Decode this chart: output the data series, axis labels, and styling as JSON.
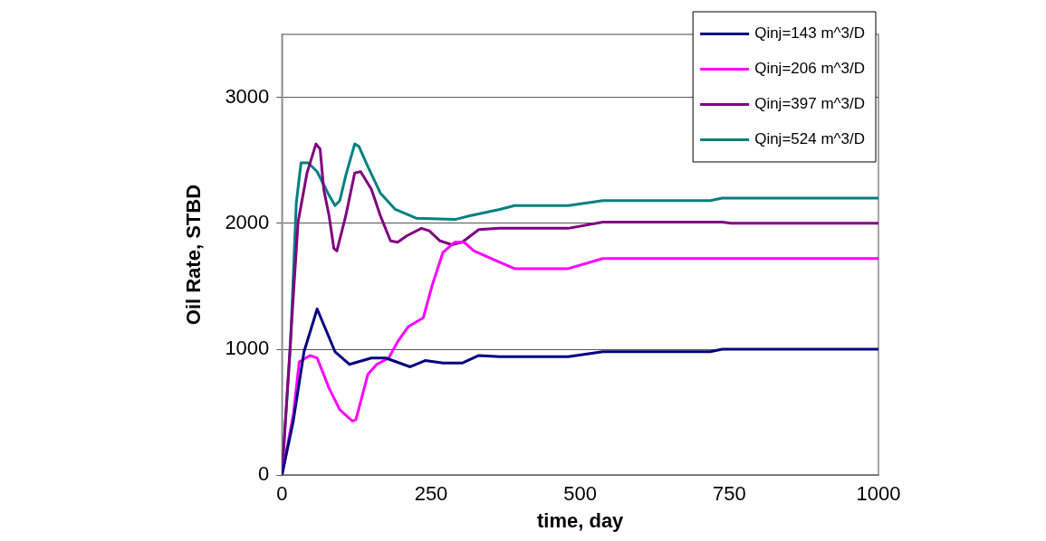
{
  "chart_data": {
    "type": "line",
    "xlabel": "time, day",
    "ylabel": "Oil Rate, STBD",
    "xlim": [
      0,
      1000
    ],
    "xticks": [
      0,
      250,
      500,
      750,
      1000
    ],
    "ylim": [
      0,
      3500
    ],
    "yticks": [
      0,
      1000,
      2000,
      3000
    ],
    "grid": "y",
    "legend": "top right",
    "marker": "none",
    "line_style": "solid",
    "series": [
      {
        "name": "Qinj=143 m^3/D",
        "color": "#000080",
        "x": [
          0,
          19,
          37,
          59,
          89,
          113,
          150,
          174,
          215,
          240,
          270,
          302,
          330,
          365,
          480,
          538,
          718,
          738,
          1000
        ],
        "values": [
          0,
          430,
          980,
          1320,
          980,
          880,
          930,
          930,
          860,
          910,
          890,
          890,
          950,
          940,
          940,
          980,
          980,
          1000,
          1000
        ]
      },
      {
        "name": "Qinj=206 m^3/D",
        "color": "#ff00ff",
        "x": [
          0,
          19,
          29,
          47,
          59,
          79,
          97,
          118,
          124,
          144,
          159,
          179,
          194,
          212,
          237,
          252,
          270,
          290,
          305,
          322,
          365,
          390,
          480,
          538,
          1000
        ],
        "values": [
          0,
          480,
          900,
          950,
          930,
          690,
          520,
          430,
          440,
          800,
          880,
          930,
          1060,
          1180,
          1250,
          1510,
          1770,
          1850,
          1850,
          1780,
          1690,
          1640,
          1640,
          1720,
          1720
        ]
      },
      {
        "name": "Qinj=397 m^3/D",
        "color": "#800080",
        "x": [
          0,
          27,
          42,
          57,
          64,
          70,
          79,
          87,
          92,
          107,
          122,
          132,
          150,
          165,
          182,
          194,
          209,
          234,
          247,
          265,
          285,
          302,
          330,
          365,
          480,
          538,
          738,
          753,
          1000
        ],
        "values": [
          0,
          2010,
          2400,
          2630,
          2590,
          2270,
          2060,
          1800,
          1780,
          2060,
          2400,
          2410,
          2270,
          2060,
          1860,
          1850,
          1900,
          1960,
          1940,
          1860,
          1830,
          1850,
          1950,
          1960,
          1960,
          2010,
          2010,
          2000,
          2000
        ]
      },
      {
        "name": "Qinj=524 m^3/D",
        "color": "#008080",
        "x": [
          0,
          14,
          24,
          32,
          44,
          59,
          77,
          89,
          97,
          107,
          122,
          129,
          144,
          165,
          190,
          225,
          290,
          315,
          365,
          390,
          480,
          538,
          718,
          738,
          1000
        ],
        "values": [
          0,
          1010,
          2160,
          2480,
          2480,
          2410,
          2240,
          2140,
          2180,
          2380,
          2630,
          2610,
          2450,
          2240,
          2110,
          2040,
          2030,
          2060,
          2110,
          2140,
          2140,
          2180,
          2180,
          2200,
          2200
        ]
      }
    ]
  }
}
